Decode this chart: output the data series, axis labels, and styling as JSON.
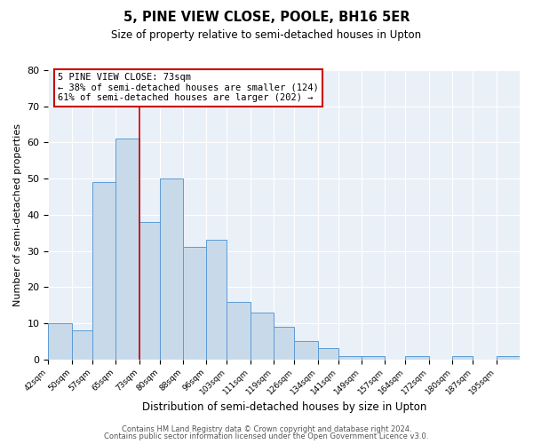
{
  "title": "5, PINE VIEW CLOSE, POOLE, BH16 5ER",
  "subtitle": "Size of property relative to semi-detached houses in Upton",
  "xlabel": "Distribution of semi-detached houses by size in Upton",
  "ylabel": "Number of semi-detached properties",
  "bar_color": "#c8daea",
  "bar_edge_color": "#5b9bd5",
  "background_color": "#eaf0f8",
  "grid_color": "#ffffff",
  "annotation_title": "5 PINE VIEW CLOSE: 73sqm",
  "annotation_line1": "← 38% of semi-detached houses are smaller (124)",
  "annotation_line2": "61% of semi-detached houses are larger (202) →",
  "marker_value": 73,
  "marker_color": "#cc0000",
  "bins": [
    42,
    50,
    57,
    65,
    73,
    80,
    88,
    96,
    103,
    111,
    119,
    126,
    134,
    141,
    149,
    157,
    164,
    172,
    180,
    187,
    195,
    203
  ],
  "counts": [
    10,
    8,
    49,
    61,
    38,
    50,
    31,
    33,
    16,
    13,
    9,
    5,
    3,
    1,
    1,
    0,
    1,
    0,
    1,
    0,
    1
  ],
  "ylim": [
    0,
    80
  ],
  "yticks": [
    0,
    10,
    20,
    30,
    40,
    50,
    60,
    70,
    80
  ],
  "footer1": "Contains HM Land Registry data © Crown copyright and database right 2024.",
  "footer2": "Contains public sector information licensed under the Open Government Licence v3.0."
}
